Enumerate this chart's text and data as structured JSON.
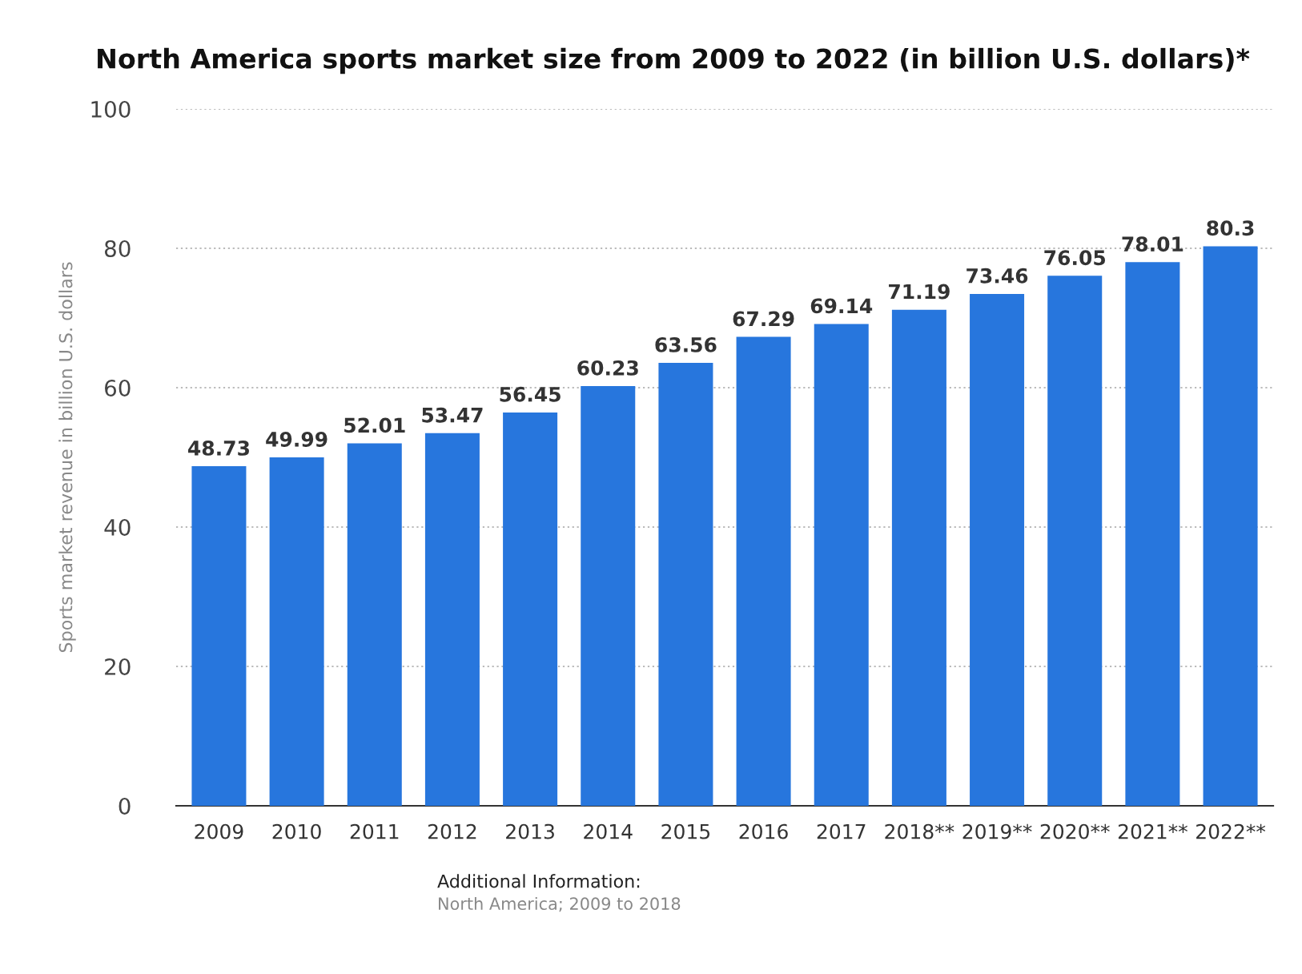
{
  "chart_data": {
    "type": "bar",
    "title": "North America sports market size from 2009 to 2022 (in billion U.S. dollars)*",
    "ylabel": "Sports market revenue in billion U.S. dollars",
    "categories": [
      "2009",
      "2010",
      "2011",
      "2012",
      "2013",
      "2014",
      "2015",
      "2016",
      "2017",
      "2018**",
      "2019**",
      "2020**",
      "2021**",
      "2022**"
    ],
    "values": [
      48.73,
      49.99,
      52.01,
      53.47,
      56.45,
      60.23,
      63.56,
      67.29,
      69.14,
      71.19,
      73.46,
      76.05,
      78.01,
      80.3
    ],
    "color": "#2776dd",
    "ylim": [
      0,
      100
    ],
    "yticks": [
      0,
      20,
      40,
      60,
      80,
      100
    ],
    "grid": "y",
    "data_labels": true,
    "annotations": [
      "Additional Information:",
      "North America; 2009 to 2018"
    ]
  }
}
